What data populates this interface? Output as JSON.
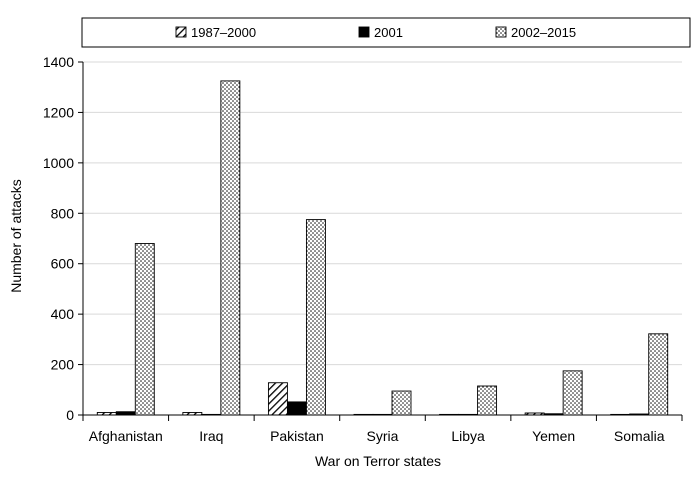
{
  "chart_data": {
    "type": "bar",
    "title": "",
    "xlabel": "War on Terror states",
    "ylabel": "Number of attacks",
    "ylim": [
      0,
      1400
    ],
    "yticks": [
      0,
      200,
      400,
      600,
      800,
      1000,
      1200,
      1400
    ],
    "grid": true,
    "legend_position": "top",
    "categories": [
      "Afghanistan",
      "Iraq",
      "Pakistan",
      "Syria",
      "Libya",
      "Yemen",
      "Somalia"
    ],
    "series": [
      {
        "name": "1987–2000",
        "pattern": "diagonal-hatch",
        "values": [
          10,
          10,
          128,
          1,
          1,
          8,
          0
        ]
      },
      {
        "name": "2001",
        "pattern": "solid-black",
        "values": [
          13,
          0,
          52,
          1,
          1,
          5,
          4
        ]
      },
      {
        "name": "2002–2015",
        "pattern": "dots",
        "values": [
          680,
          1325,
          775,
          95,
          115,
          175,
          322
        ]
      }
    ]
  }
}
